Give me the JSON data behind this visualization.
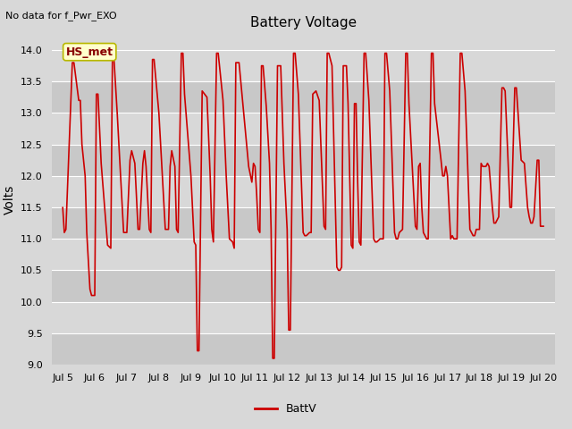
{
  "title": "Battery Voltage",
  "top_left_note": "No data for f_Pwr_EXO",
  "ylabel": "Volts",
  "legend_label": "BattV",
  "legend_color": "#cc0000",
  "ylim": [
    9.0,
    14.25
  ],
  "yticks": [
    9.0,
    9.5,
    10.0,
    10.5,
    11.0,
    11.5,
    12.0,
    12.5,
    13.0,
    13.5,
    14.0
  ],
  "figure_bg": "#d8d8d8",
  "axes_bg": "#d8d8d8",
  "band_colors": [
    "#c8c8c8",
    "#d8d8d8"
  ],
  "line_color": "#cc0000",
  "annotation_box_facecolor": "#ffffcc",
  "annotation_box_edgecolor": "#b8b800",
  "annotation_text": "HS_met",
  "annotation_text_color": "#880000",
  "x_tick_labels": [
    "Jul 5",
    "Jul 6",
    "Jul 7",
    "Jul 8",
    "Jul 9",
    "Jul 10",
    "Jul 11",
    "Jul 12",
    "Jul 13",
    "Jul 14",
    "Jul 15",
    "Jul 16",
    "Jul 17",
    "Jul 18",
    "Jul 19",
    "Jul 20"
  ],
  "x_tick_positions": [
    5,
    6,
    7,
    8,
    9,
    10,
    11,
    12,
    13,
    14,
    15,
    16,
    17,
    18,
    19,
    20
  ],
  "xlim_left": 4.65,
  "xlim_right": 20.35,
  "voltage_data": [
    [
      5.0,
      11.5
    ],
    [
      5.05,
      11.1
    ],
    [
      5.1,
      11.15
    ],
    [
      5.3,
      13.8
    ],
    [
      5.35,
      13.8
    ],
    [
      5.5,
      13.2
    ],
    [
      5.55,
      13.2
    ],
    [
      5.6,
      12.5
    ],
    [
      5.7,
      12.0
    ],
    [
      5.75,
      11.1
    ],
    [
      5.85,
      10.2
    ],
    [
      5.9,
      10.1
    ],
    [
      6.0,
      10.1
    ],
    [
      6.05,
      13.3
    ],
    [
      6.1,
      13.3
    ],
    [
      6.2,
      12.2
    ],
    [
      6.4,
      10.9
    ],
    [
      6.5,
      10.85
    ],
    [
      6.55,
      13.85
    ],
    [
      6.6,
      13.85
    ],
    [
      6.7,
      13.0
    ],
    [
      6.9,
      11.1
    ],
    [
      7.0,
      11.1
    ],
    [
      7.1,
      12.25
    ],
    [
      7.15,
      12.4
    ],
    [
      7.25,
      12.2
    ],
    [
      7.35,
      11.15
    ],
    [
      7.4,
      11.15
    ],
    [
      7.5,
      12.2
    ],
    [
      7.55,
      12.4
    ],
    [
      7.6,
      12.15
    ],
    [
      7.7,
      11.15
    ],
    [
      7.75,
      11.1
    ],
    [
      7.8,
      13.85
    ],
    [
      7.85,
      13.85
    ],
    [
      8.0,
      13.0
    ],
    [
      8.2,
      11.15
    ],
    [
      8.3,
      11.15
    ],
    [
      8.35,
      12.15
    ],
    [
      8.4,
      12.4
    ],
    [
      8.5,
      12.15
    ],
    [
      8.55,
      11.15
    ],
    [
      8.6,
      11.1
    ],
    [
      8.7,
      13.95
    ],
    [
      8.75,
      13.95
    ],
    [
      8.8,
      13.3
    ],
    [
      9.0,
      12.0
    ],
    [
      9.1,
      10.95
    ],
    [
      9.15,
      10.9
    ],
    [
      9.2,
      9.22
    ],
    [
      9.25,
      9.22
    ],
    [
      9.35,
      13.35
    ],
    [
      9.5,
      13.25
    ],
    [
      9.6,
      12.0
    ],
    [
      9.65,
      11.15
    ],
    [
      9.7,
      10.95
    ],
    [
      9.8,
      13.95
    ],
    [
      9.85,
      13.95
    ],
    [
      10.0,
      13.2
    ],
    [
      10.1,
      12.0
    ],
    [
      10.2,
      11.0
    ],
    [
      10.3,
      10.95
    ],
    [
      10.35,
      10.85
    ],
    [
      10.4,
      13.8
    ],
    [
      10.5,
      13.8
    ],
    [
      10.6,
      13.25
    ],
    [
      10.8,
      12.15
    ],
    [
      10.9,
      11.9
    ],
    [
      10.95,
      12.2
    ],
    [
      11.0,
      12.15
    ],
    [
      11.05,
      11.7
    ],
    [
      11.1,
      11.15
    ],
    [
      11.15,
      11.1
    ],
    [
      11.2,
      13.75
    ],
    [
      11.25,
      13.75
    ],
    [
      11.35,
      13.1
    ],
    [
      11.45,
      12.2
    ],
    [
      11.5,
      11.15
    ],
    [
      11.55,
      9.1
    ],
    [
      11.6,
      9.1
    ],
    [
      11.7,
      13.75
    ],
    [
      11.8,
      13.75
    ],
    [
      11.9,
      12.2
    ],
    [
      12.0,
      11.15
    ],
    [
      12.05,
      9.55
    ],
    [
      12.1,
      9.55
    ],
    [
      12.2,
      13.95
    ],
    [
      12.25,
      13.95
    ],
    [
      12.35,
      13.3
    ],
    [
      12.5,
      11.1
    ],
    [
      12.55,
      11.05
    ],
    [
      12.6,
      11.05
    ],
    [
      12.7,
      11.1
    ],
    [
      12.75,
      11.1
    ],
    [
      12.8,
      13.3
    ],
    [
      12.9,
      13.35
    ],
    [
      13.0,
      13.2
    ],
    [
      13.15,
      11.2
    ],
    [
      13.2,
      11.15
    ],
    [
      13.25,
      13.95
    ],
    [
      13.3,
      13.95
    ],
    [
      13.4,
      13.75
    ],
    [
      13.55,
      10.55
    ],
    [
      13.6,
      10.5
    ],
    [
      13.65,
      10.5
    ],
    [
      13.7,
      10.55
    ],
    [
      13.75,
      13.75
    ],
    [
      13.85,
      13.75
    ],
    [
      13.9,
      13.15
    ],
    [
      14.0,
      10.9
    ],
    [
      14.05,
      10.85
    ],
    [
      14.1,
      13.15
    ],
    [
      14.15,
      13.15
    ],
    [
      14.2,
      11.9
    ],
    [
      14.25,
      10.95
    ],
    [
      14.3,
      10.9
    ],
    [
      14.4,
      13.95
    ],
    [
      14.45,
      13.95
    ],
    [
      14.55,
      13.2
    ],
    [
      14.7,
      11.0
    ],
    [
      14.75,
      10.95
    ],
    [
      14.8,
      10.95
    ],
    [
      14.9,
      11.0
    ],
    [
      15.0,
      11.0
    ],
    [
      15.05,
      13.95
    ],
    [
      15.1,
      13.95
    ],
    [
      15.2,
      13.35
    ],
    [
      15.35,
      11.1
    ],
    [
      15.4,
      11.0
    ],
    [
      15.45,
      11.0
    ],
    [
      15.5,
      11.1
    ],
    [
      15.6,
      11.15
    ],
    [
      15.7,
      13.95
    ],
    [
      15.75,
      13.95
    ],
    [
      15.8,
      13.15
    ],
    [
      16.0,
      11.2
    ],
    [
      16.05,
      11.15
    ],
    [
      16.1,
      12.15
    ],
    [
      16.15,
      12.2
    ],
    [
      16.2,
      11.5
    ],
    [
      16.25,
      11.1
    ],
    [
      16.3,
      11.05
    ],
    [
      16.35,
      11.0
    ],
    [
      16.4,
      11.0
    ],
    [
      16.5,
      13.95
    ],
    [
      16.55,
      13.95
    ],
    [
      16.6,
      13.15
    ],
    [
      16.8,
      12.25
    ],
    [
      16.85,
      12.0
    ],
    [
      16.9,
      12.0
    ],
    [
      16.95,
      12.15
    ],
    [
      17.0,
      12.0
    ],
    [
      17.05,
      11.5
    ],
    [
      17.1,
      11.0
    ],
    [
      17.15,
      11.05
    ],
    [
      17.2,
      11.0
    ],
    [
      17.3,
      11.0
    ],
    [
      17.4,
      13.95
    ],
    [
      17.45,
      13.95
    ],
    [
      17.55,
      13.35
    ],
    [
      17.7,
      11.15
    ],
    [
      17.75,
      11.1
    ],
    [
      17.8,
      11.05
    ],
    [
      17.85,
      11.05
    ],
    [
      17.9,
      11.15
    ],
    [
      18.0,
      11.15
    ],
    [
      18.05,
      12.2
    ],
    [
      18.1,
      12.15
    ],
    [
      18.2,
      12.15
    ],
    [
      18.25,
      12.2
    ],
    [
      18.3,
      12.15
    ],
    [
      18.4,
      11.5
    ],
    [
      18.45,
      11.25
    ],
    [
      18.5,
      11.25
    ],
    [
      18.6,
      11.35
    ],
    [
      18.7,
      13.4
    ],
    [
      18.75,
      13.4
    ],
    [
      18.8,
      13.35
    ],
    [
      18.95,
      11.5
    ],
    [
      19.0,
      11.5
    ],
    [
      19.1,
      13.4
    ],
    [
      19.15,
      13.4
    ],
    [
      19.3,
      12.25
    ],
    [
      19.4,
      12.2
    ],
    [
      19.5,
      11.5
    ],
    [
      19.55,
      11.35
    ],
    [
      19.6,
      11.25
    ],
    [
      19.65,
      11.25
    ],
    [
      19.7,
      11.35
    ],
    [
      19.8,
      12.25
    ],
    [
      19.85,
      12.25
    ],
    [
      19.9,
      11.2
    ],
    [
      20.0,
      11.2
    ]
  ]
}
